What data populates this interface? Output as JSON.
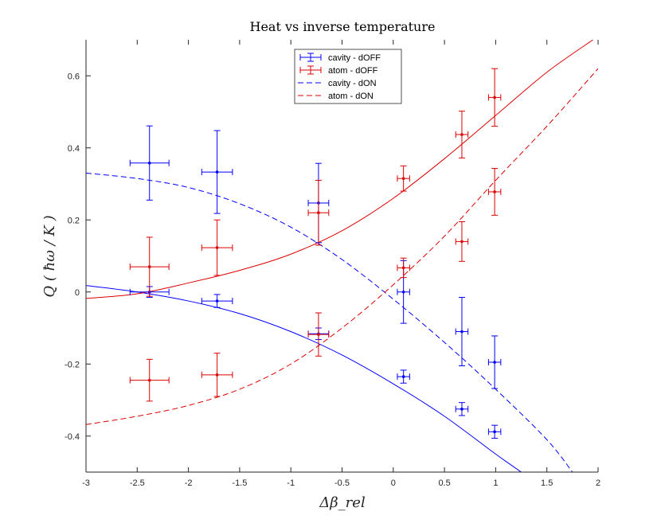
{
  "chart_data": {
    "type": "scatter",
    "title": "Heat vs inverse temperature",
    "xlabel": "Δβ_rel",
    "ylabel": "Q ( ħω / K )",
    "xlim": [
      -3,
      2
    ],
    "ylim": [
      -0.5,
      0.7
    ],
    "xticks": [
      -3,
      -2.5,
      -2,
      -1.5,
      -1,
      -0.5,
      0,
      0.5,
      1,
      1.5,
      2
    ],
    "xtick_labels": [
      "-3",
      "-2.5",
      "-2",
      "-1.5",
      "-1",
      "-0.5",
      "0",
      "0.5",
      "1",
      "1.5",
      "2"
    ],
    "yticks": [
      -0.4,
      -0.2,
      0,
      0.2,
      0.4,
      0.6
    ],
    "ytick_labels": [
      "-0.4",
      "-0.2",
      "0",
      "0.2",
      "0.4",
      "0.6"
    ],
    "grid": false,
    "legend_position": "top-center",
    "series": [
      {
        "name": "cavity - dOFF",
        "kind": "errorbar",
        "color": "#0000ff",
        "points": [
          {
            "x": -2.38,
            "y": 0.358,
            "xerr": 0.19,
            "yerr": 0.103
          },
          {
            "x": -1.72,
            "y": 0.333,
            "xerr": 0.15,
            "yerr": 0.115
          },
          {
            "x": -2.38,
            "y": 0.0,
            "xerr": 0.19,
            "yerr": 0.015
          },
          {
            "x": -1.72,
            "y": -0.025,
            "xerr": 0.15,
            "yerr": 0.018
          },
          {
            "x": -0.73,
            "y": 0.247,
            "xerr": 0.1,
            "yerr": 0.11
          },
          {
            "x": -0.73,
            "y": -0.116,
            "xerr": 0.1,
            "yerr": 0.016
          },
          {
            "x": 0.1,
            "y": 0.0,
            "xerr": 0.06,
            "yerr": 0.087
          },
          {
            "x": 0.1,
            "y": -0.235,
            "xerr": 0.06,
            "yerr": 0.018
          },
          {
            "x": 0.67,
            "y": -0.11,
            "xerr": 0.06,
            "yerr": 0.095
          },
          {
            "x": 0.67,
            "y": -0.325,
            "xerr": 0.06,
            "yerr": 0.018
          },
          {
            "x": 0.99,
            "y": -0.195,
            "xerr": 0.06,
            "yerr": 0.073
          },
          {
            "x": 0.99,
            "y": -0.388,
            "xerr": 0.06,
            "yerr": 0.018
          }
        ]
      },
      {
        "name": "atom - dOFF",
        "kind": "errorbar",
        "color": "#dd0000",
        "points": [
          {
            "x": -2.38,
            "y": 0.07,
            "xerr": 0.19,
            "yerr": 0.082
          },
          {
            "x": -2.38,
            "y": -0.245,
            "xerr": 0.19,
            "yerr": 0.058
          },
          {
            "x": -1.72,
            "y": 0.123,
            "xerr": 0.15,
            "yerr": 0.077
          },
          {
            "x": -1.72,
            "y": -0.23,
            "xerr": 0.15,
            "yerr": 0.06
          },
          {
            "x": -0.73,
            "y": 0.22,
            "xerr": 0.1,
            "yerr": 0.09
          },
          {
            "x": -0.73,
            "y": -0.118,
            "xerr": 0.1,
            "yerr": 0.06
          },
          {
            "x": 0.1,
            "y": 0.315,
            "xerr": 0.06,
            "yerr": 0.035
          },
          {
            "x": 0.1,
            "y": 0.067,
            "xerr": 0.06,
            "yerr": 0.027
          },
          {
            "x": 0.67,
            "y": 0.437,
            "xerr": 0.06,
            "yerr": 0.065
          },
          {
            "x": 0.67,
            "y": 0.14,
            "xerr": 0.06,
            "yerr": 0.055
          },
          {
            "x": 0.99,
            "y": 0.54,
            "xerr": 0.06,
            "yerr": 0.08
          },
          {
            "x": 0.99,
            "y": 0.278,
            "xerr": 0.06,
            "yerr": 0.065
          }
        ]
      },
      {
        "name": "cavity - dON",
        "kind": "line",
        "style": "dashed",
        "color": "#0000ff",
        "x": [
          -3,
          -2.5,
          -2,
          -1.5,
          -1,
          -0.5,
          0,
          0.5,
          1,
          1.5,
          1.75
        ],
        "y": [
          0.33,
          0.315,
          0.29,
          0.245,
          0.18,
          0.09,
          -0.02,
          -0.14,
          -0.27,
          -0.41,
          -0.5
        ]
      },
      {
        "name": "atom - dON",
        "kind": "line",
        "style": "dashed",
        "color": "#dd0000",
        "x": [
          -3,
          -2.5,
          -2,
          -1.5,
          -1,
          -0.5,
          0,
          0.5,
          1,
          1.5,
          2
        ],
        "y": [
          -0.368,
          -0.345,
          -0.315,
          -0.27,
          -0.2,
          -0.1,
          0.02,
          0.155,
          0.31,
          0.46,
          0.62
        ]
      },
      {
        "name": "",
        "kind": "line",
        "style": "solid",
        "color": "#0000ff",
        "x": [
          -3,
          -2.5,
          -2,
          -1.5,
          -1,
          -0.5,
          0,
          0.5,
          1,
          1.25
        ],
        "y": [
          0.018,
          0.0,
          -0.025,
          -0.06,
          -0.11,
          -0.175,
          -0.255,
          -0.345,
          -0.45,
          -0.5
        ]
      },
      {
        "name": "",
        "kind": "line",
        "style": "solid",
        "color": "#dd0000",
        "x": [
          -3,
          -2.5,
          -2,
          -1.5,
          -1,
          -0.5,
          0,
          0.5,
          1,
          1.5,
          1.95
        ],
        "y": [
          -0.018,
          -0.005,
          0.025,
          0.06,
          0.105,
          0.17,
          0.26,
          0.37,
          0.49,
          0.61,
          0.7
        ]
      }
    ]
  }
}
